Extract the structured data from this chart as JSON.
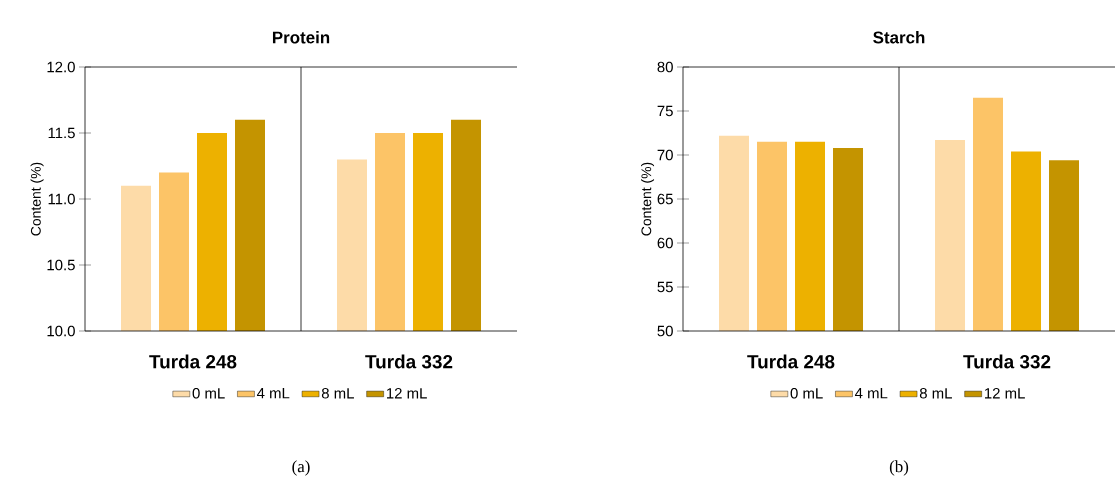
{
  "chart_data": [
    {
      "type": "bar",
      "title": "Protein",
      "ylabel": "Content (%)",
      "categories": [
        "Turda 248",
        "Turda 332"
      ],
      "series": [
        {
          "name": "0 mL",
          "color": "#fddba8",
          "values": [
            11.1,
            11.3
          ]
        },
        {
          "name": "4 mL",
          "color": "#fcc467",
          "values": [
            11.2,
            11.5
          ]
        },
        {
          "name": "8 mL",
          "color": "#edb100",
          "values": [
            11.5,
            11.5
          ]
        },
        {
          "name": "12 mL",
          "color": "#c49400",
          "values": [
            11.6,
            11.6
          ]
        }
      ],
      "ylim": [
        10,
        12
      ],
      "yticks": [
        {
          "value": 10,
          "label": "10.0"
        },
        {
          "value": 10.5,
          "label": "10.5"
        },
        {
          "value": 11,
          "label": "11.0"
        },
        {
          "value": 11.5,
          "label": "11.5"
        },
        {
          "value": 12,
          "label": "12.0"
        }
      ],
      "legend": "bottom",
      "grid": false,
      "annotations": [
        "(a)"
      ]
    },
    {
      "type": "bar",
      "title": "Starch",
      "ylabel": "Content (%)",
      "categories": [
        "Turda 248",
        "Turda 332"
      ],
      "series": [
        {
          "name": "0 mL",
          "color": "#fddba8",
          "values": [
            72.2,
            71.7
          ]
        },
        {
          "name": "4 mL",
          "color": "#fcc467",
          "values": [
            71.5,
            76.5
          ]
        },
        {
          "name": "8 mL",
          "color": "#edb100",
          "values": [
            71.5,
            70.4
          ]
        },
        {
          "name": "12 mL",
          "color": "#c49400",
          "values": [
            70.8,
            69.4
          ]
        }
      ],
      "ylim": [
        50,
        80
      ],
      "yticks": [
        50,
        55,
        60,
        65,
        70,
        75,
        80
      ],
      "legend": "bottom",
      "grid": false,
      "annotations": [
        "(b)"
      ]
    }
  ]
}
